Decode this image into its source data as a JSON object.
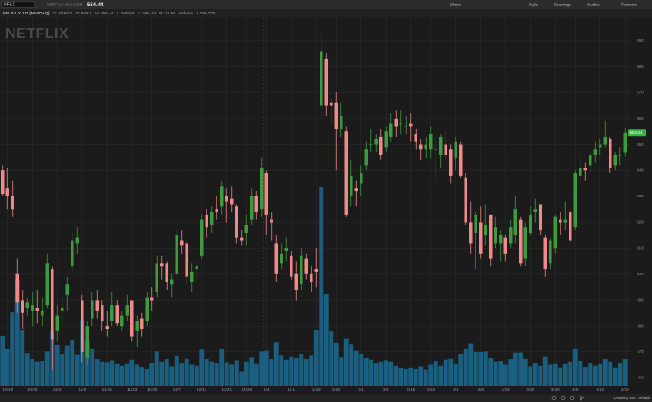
{
  "toolbar": {
    "symbol": "NFLX",
    "company": "NETFLIX INC COM",
    "last": "554.44",
    "buttons": [
      "Share",
      "Style",
      "Drawings",
      "Studies",
      "Patterns"
    ]
  },
  "status_bar": [
    "NFLX 1 Y 1 D [NASDAQ]",
    "D: 4/19/21",
    "O: 546.9",
    "H: 556.44",
    "L: 545.53",
    "C: 554.44",
    "R: 10.91",
    "Volume",
    "4,288,775"
  ],
  "footer": "Drawing set: Default",
  "chart_data": {
    "type": "candlestick",
    "watermark": "NETFLIX",
    "categories": [
      null,
      "10/19",
      null,
      null,
      null,
      null,
      "10/26",
      null,
      null,
      null,
      null,
      "11/2",
      null,
      null,
      null,
      null,
      "11/9",
      null,
      null,
      null,
      null,
      "11/16",
      null,
      null,
      null,
      null,
      "11/23",
      null,
      null,
      null,
      "11/30",
      null,
      null,
      null,
      null,
      "12/7",
      null,
      null,
      null,
      null,
      "12/14",
      null,
      null,
      null,
      null,
      "12/21",
      null,
      null,
      null,
      "12/28",
      null,
      null,
      null,
      "1/4",
      null,
      null,
      null,
      null,
      "1/11",
      null,
      null,
      null,
      null,
      "1/18",
      null,
      null,
      null,
      "1/25",
      null,
      null,
      null,
      null,
      "2/1",
      null,
      null,
      null,
      null,
      "2/8",
      null,
      null,
      null,
      null,
      "2/15",
      null,
      null,
      null,
      "2/22",
      null,
      null,
      null,
      null,
      "3/1",
      null,
      null,
      null,
      null,
      "3/8",
      null,
      null,
      null,
      null,
      "3/15",
      null,
      null,
      null,
      null,
      "3/22",
      null,
      null,
      null,
      null,
      "3/29",
      null,
      null,
      null,
      "4/5",
      null,
      null,
      null,
      null,
      "4/12",
      null,
      null,
      null,
      null,
      "4/19"
    ],
    "open": [
      540,
      533,
      530,
      500,
      490,
      487,
      486,
      487,
      484,
      488,
      502,
      478,
      486,
      492,
      503,
      512,
      490,
      468,
      483,
      490,
      488,
      480,
      482,
      488,
      480,
      484,
      490,
      478,
      483,
      482,
      491,
      493,
      504,
      504,
      496,
      500,
      513,
      512,
      497,
      502,
      507,
      523,
      519,
      525,
      526,
      530,
      529,
      526,
      514,
      516,
      521,
      530,
      525,
      539,
      521,
      512,
      504,
      509,
      507,
      500,
      496,
      506,
      500,
      502,
      565,
      583,
      566,
      566,
      556,
      555,
      530,
      533,
      535,
      542,
      550,
      550,
      553,
      549,
      553,
      560,
      558,
      557,
      558,
      554,
      550,
      548,
      548,
      548,
      546,
      550,
      548,
      545,
      550,
      537,
      520,
      516,
      520,
      515,
      523,
      512,
      512,
      514,
      512,
      515,
      521,
      506,
      516,
      524,
      527,
      514,
      504,
      510,
      521,
      520,
      524,
      518,
      538,
      541,
      542,
      546,
      549,
      550,
      552,
      542,
      546,
      546.9
    ],
    "high": [
      542,
      541,
      536,
      506,
      494,
      491,
      493,
      494,
      491,
      508,
      503,
      488,
      492,
      499,
      516,
      518,
      492,
      482,
      493,
      494,
      490,
      486,
      493,
      490,
      486,
      492,
      490,
      484,
      485,
      493,
      495,
      507,
      507,
      505,
      500,
      517,
      517,
      513,
      504,
      505,
      523,
      525,
      526,
      530,
      536,
      533,
      534,
      527,
      517,
      523,
      533,
      532,
      545,
      540,
      524,
      515,
      512,
      514,
      509,
      505,
      510,
      508,
      503,
      510,
      593,
      585,
      568,
      570,
      566,
      557,
      544,
      536,
      542,
      551,
      556,
      554,
      556,
      557,
      562,
      563,
      563,
      561,
      562,
      556,
      552,
      553,
      557,
      553,
      554,
      555,
      550,
      553,
      551,
      539,
      528,
      524,
      526,
      527,
      523,
      522,
      517,
      515,
      521,
      530,
      522,
      520,
      526,
      529,
      527,
      515,
      514,
      523,
      524,
      528,
      525,
      540,
      545,
      543,
      547,
      551,
      552,
      559,
      553,
      547,
      549,
      556.44
    ],
    "low": [
      530,
      525,
      522,
      485,
      479,
      484,
      480,
      481,
      480,
      487,
      463,
      474,
      480,
      486,
      500,
      508,
      466,
      465,
      480,
      483,
      478,
      476,
      480,
      480,
      478,
      482,
      474,
      472,
      476,
      480,
      486,
      491,
      498,
      494,
      491,
      499,
      508,
      496,
      493,
      497,
      506,
      514,
      516,
      521,
      523,
      520,
      524,
      512,
      511,
      511,
      519,
      521,
      522,
      515,
      513,
      497,
      502,
      505,
      498,
      490,
      494,
      498,
      493,
      495,
      561,
      561,
      558,
      540,
      553,
      522,
      526,
      526,
      530,
      540,
      547,
      547,
      544,
      547,
      551,
      553,
      554,
      554,
      551,
      548,
      544,
      545,
      545,
      536,
      541,
      544,
      535,
      540,
      537,
      519,
      508,
      502,
      506,
      511,
      503,
      510,
      505,
      505,
      510,
      512,
      503,
      503,
      515,
      520,
      515,
      499,
      502,
      508,
      515,
      517,
      512,
      517,
      536,
      536,
      539,
      543,
      546,
      549,
      539,
      540,
      542,
      545.53
    ],
    "close": [
      531,
      530,
      525,
      489,
      485,
      489,
      488,
      486,
      486,
      504,
      475,
      484,
      487,
      496,
      513,
      514,
      470,
      480,
      490,
      486,
      482,
      479,
      488,
      481,
      484,
      488,
      476,
      482,
      479,
      491,
      490,
      504,
      503,
      497,
      498,
      515,
      511,
      499,
      501,
      503,
      521,
      518,
      524,
      524,
      534,
      528,
      527,
      514,
      513,
      519,
      530,
      524,
      541,
      523,
      520,
      500,
      508,
      510,
      499,
      494,
      507,
      500,
      497,
      501,
      586,
      565,
      565,
      556,
      561,
      523,
      538,
      532,
      539,
      548,
      550,
      552,
      546,
      555,
      558,
      557,
      558,
      557,
      557,
      551,
      548,
      550,
      554,
      548,
      553,
      546,
      538,
      551,
      538,
      520,
      512,
      523,
      508,
      519,
      506,
      518,
      515,
      508,
      518,
      525,
      504,
      518,
      523,
      525,
      517,
      502,
      513,
      522,
      520,
      521,
      513,
      539,
      541,
      540,
      546,
      548,
      550,
      553,
      541,
      546,
      546,
      554.44
    ],
    "volume": [
      8200000,
      6100000,
      12000000,
      17400000,
      9100000,
      5300000,
      4300000,
      3900000,
      4000000,
      5600000,
      8900000,
      6700000,
      5200000,
      6600000,
      7400000,
      5100000,
      10800000,
      7300000,
      6000000,
      4300000,
      3900000,
      3800000,
      4100000,
      3600000,
      3300000,
      3600000,
      4200000,
      3500000,
      3100000,
      2800000,
      3700000,
      5600000,
      3900000,
      4300000,
      3200000,
      4900000,
      3700000,
      4500000,
      3500000,
      3300000,
      5900000,
      4400000,
      3900000,
      3700000,
      6000000,
      3800000,
      3500000,
      4100000,
      2300000,
      3900000,
      4700000,
      3600000,
      5600000,
      5700000,
      4300000,
      7100000,
      5000000,
      4200000,
      4800000,
      4600000,
      5200000,
      4400000,
      5000000,
      9200000,
      32600000,
      15000000,
      8900000,
      7000000,
      4700000,
      7800000,
      6800000,
      5700000,
      5200000,
      4600000,
      4200000,
      3700000,
      3900000,
      4100000,
      3900000,
      3300000,
      3000000,
      2700000,
      3000000,
      2800000,
      3200000,
      2600000,
      3500000,
      4000000,
      3300000,
      4200000,
      4500000,
      3600000,
      5200000,
      6100000,
      6900000,
      5500000,
      5500000,
      5600000,
      4600000,
      3900000,
      4000000,
      3500000,
      4300000,
      5400000,
      5400000,
      4400000,
      3200000,
      3700000,
      3300000,
      4800000,
      3500000,
      3600000,
      3000000,
      3600000,
      3900000,
      6100000,
      4000000,
      3100000,
      3700000,
      3300000,
      3600000,
      4300000,
      3900000,
      3000000,
      3700000,
      4288775
    ],
    "ylim": [
      457,
      598
    ],
    "yticks": [
      460,
      470,
      480,
      490,
      500,
      510,
      520,
      530,
      540,
      550,
      560,
      570,
      580,
      590
    ],
    "volume_lim": [
      0,
      60000000
    ],
    "up_color": "#3f9a3f",
    "down_color": "#f08a8a",
    "volume_color": "#1b5f80",
    "last_color": "#3cb043",
    "grid": true
  }
}
